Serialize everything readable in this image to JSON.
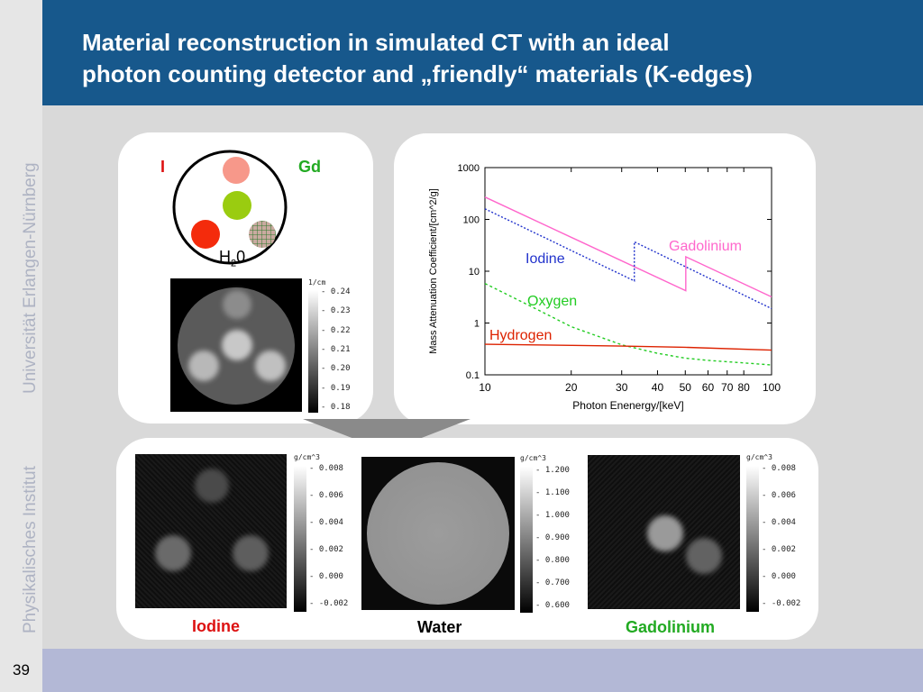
{
  "slide": {
    "title_line1": "Material reconstruction in simulated CT with an ideal",
    "title_line2": "photon counting detector and „friendly“ materials (K-edges)",
    "vertical_text_1": "Universität Erlangen-Nürnberg",
    "vertical_text_2": "Physikalisches Institut",
    "page_number": "39"
  },
  "phantom": {
    "label_I": "I",
    "label_Gd": "Gd",
    "label_h2o_main": "H",
    "label_h2o_sub": "2",
    "label_h2o_end": "0"
  },
  "ct_colorbar": {
    "unit": "1/cm",
    "ticks": [
      "0.24",
      "0.23",
      "0.22",
      "0.21",
      "0.20",
      "0.19",
      "0.18"
    ]
  },
  "results": {
    "iodine": {
      "label": "Iodine",
      "unit": "g/cm^3",
      "ticks": [
        "0.008",
        "0.006",
        "0.004",
        "0.002",
        "0.000",
        "-0.002"
      ]
    },
    "water": {
      "label": "Water",
      "unit": "g/cm^3",
      "ticks": [
        "1.200",
        "1.100",
        "1.000",
        "0.900",
        "0.800",
        "0.700",
        "0.600"
      ]
    },
    "gadolinium": {
      "label": "Gadolinium",
      "unit": "g/cm^3",
      "ticks": [
        "0.008",
        "0.006",
        "0.004",
        "0.002",
        "0.000",
        "-0.002"
      ]
    }
  },
  "colors": {
    "header": "#17588c",
    "iodine_red": "#dd1111",
    "gd_green": "#22aa22",
    "water_black": "#000000"
  },
  "chart_data": {
    "type": "line",
    "xscale": "log",
    "yscale": "log",
    "xlim": [
      10,
      100
    ],
    "ylim": [
      0.1,
      1000
    ],
    "xlabel": "Photon Enenergy/[keV]",
    "ylabel": "Mass Attenuation Coefficient/[cm^2/g]",
    "xticks": [
      "10",
      "20",
      "30",
      "40",
      "50",
      "60",
      "70",
      "80",
      "100"
    ],
    "yticks": [
      "1000",
      "100",
      "10",
      "1",
      "0.1"
    ],
    "grid": false,
    "series": [
      {
        "name": "Gadolinium",
        "color": "#ff66cc",
        "style": "solid",
        "x": [
          10,
          50.2,
          50.2,
          100
        ],
        "y": [
          270,
          4.2,
          19,
          3.2
        ]
      },
      {
        "name": "Iodine",
        "color": "#2233cc",
        "style": "dotted",
        "x": [
          10,
          33.2,
          33.2,
          100
        ],
        "y": [
          160,
          6.5,
          37,
          1.9
        ]
      },
      {
        "name": "Oxygen",
        "color": "#22cc22",
        "style": "dashed",
        "x": [
          10,
          15,
          20,
          30,
          40,
          50,
          60,
          80,
          100
        ],
        "y": [
          5.8,
          1.9,
          0.85,
          0.38,
          0.26,
          0.21,
          0.19,
          0.17,
          0.155
        ]
      },
      {
        "name": "Hydrogen",
        "color": "#dd2200",
        "style": "solid",
        "x": [
          10,
          20,
          30,
          50,
          100
        ],
        "y": [
          0.39,
          0.37,
          0.36,
          0.34,
          0.3
        ]
      }
    ]
  }
}
